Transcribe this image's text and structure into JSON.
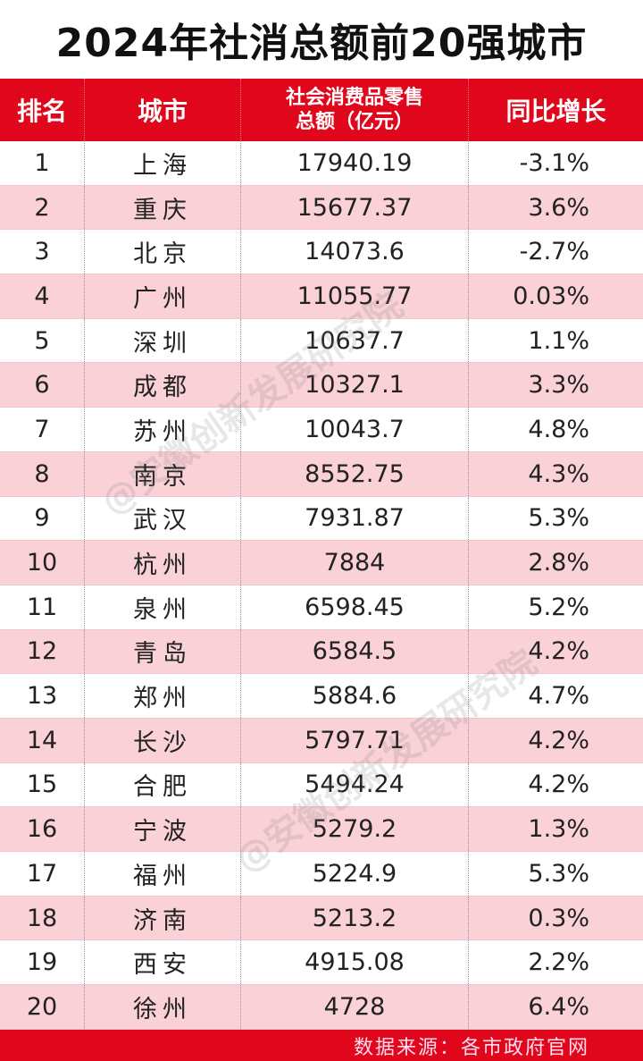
{
  "title": "2024年社消总额前20强城市",
  "headers": {
    "rank": "排名",
    "city": "城市",
    "total_line1": "社会消费品零售",
    "total_line2": "总额（亿元）",
    "growth": "同比增长"
  },
  "rows": [
    [
      "1",
      "上海",
      "17940.19",
      "-3.1%"
    ],
    [
      "2",
      "重庆",
      "15677.37",
      "3.6%"
    ],
    [
      "3",
      "北京",
      "14073.6",
      "-2.7%"
    ],
    [
      "4",
      "广州",
      "11055.77",
      "0.03%"
    ],
    [
      "5",
      "深圳",
      "10637.7",
      "1.1%"
    ],
    [
      "6",
      "成都",
      "10327.1",
      "3.3%"
    ],
    [
      "7",
      "苏州",
      "10043.7",
      "4.8%"
    ],
    [
      "8",
      "南京",
      "8552.75",
      "4.3%"
    ],
    [
      "9",
      "武汉",
      "7931.87",
      "5.3%"
    ],
    [
      "10",
      "杭州",
      "7884",
      "2.8%"
    ],
    [
      "11",
      "泉州",
      "6598.45",
      "5.2%"
    ],
    [
      "12",
      "青岛",
      "6584.5",
      "4.2%"
    ],
    [
      "13",
      "郑州",
      "5884.6",
      "4.7%"
    ],
    [
      "14",
      "长沙",
      "5797.71",
      "4.2%"
    ],
    [
      "15",
      "合肥",
      "5494.24",
      "4.2%"
    ],
    [
      "16",
      "宁波",
      "5279.2",
      "1.3%"
    ],
    [
      "17",
      "福州",
      "5224.9",
      "5.3%"
    ],
    [
      "18",
      "济南",
      "5213.2",
      "0.3%"
    ],
    [
      "19",
      "西安",
      "4915.08",
      "2.2%"
    ],
    [
      "20",
      "徐州",
      "4728",
      "6.4%"
    ]
  ],
  "footer": "数据来源：各市政府官网",
  "watermark": "@安徽创新发展研究院"
}
